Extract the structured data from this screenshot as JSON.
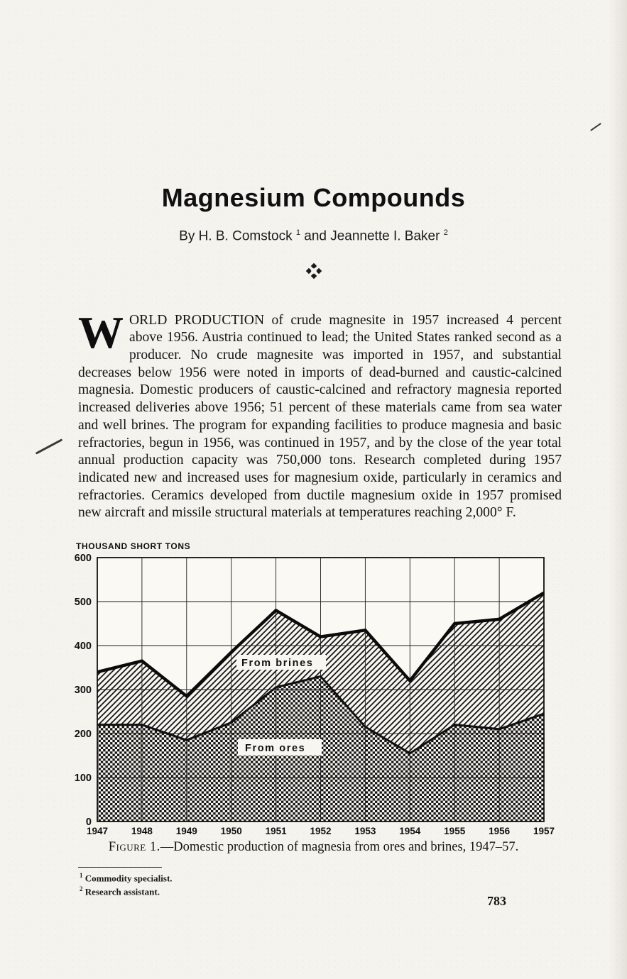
{
  "page": {
    "title": "Magnesium Compounds",
    "byline": {
      "pre": "By H. B. Comstock ",
      "sup1": "1",
      "mid": " and Jeannette I. Baker ",
      "sup2": "2"
    },
    "page_number": "783"
  },
  "icons": {
    "ornament": "four-diamond-fleuron"
  },
  "article": {
    "dropcap": "W",
    "paragraph": "ORLD PRODUCTION of crude magnesite in 1957 increased 4 percent above 1956.  Austria continued to lead; the United States ranked second as a producer.  No crude magnesite was imported in 1957, and substantial decreases below 1956 were noted in imports of dead-burned and caustic-calcined magnesia.  Domestic producers of caustic-calcined and refractory magnesia reported increased deliveries above 1956; 51 percent of these materials came from sea water and well brines.  The program for expanding facilities to produce magnesia and basic refractories, begun in 1956, was continued in 1957, and by the close of the year total annual production capacity was 750,000 tons.  Research completed during 1957 indicated new and increased uses for magnesium oxide, particularly in ceramics and refractories.  Ceramics developed from ductile magnesium oxide in 1957 promised new aircraft and missile structural materials at temperatures reaching 2,000° F."
  },
  "chart_data": {
    "type": "area",
    "stacked": true,
    "unit_label": "THOUSAND SHORT TONS",
    "categories": [
      "1947",
      "1948",
      "1949",
      "1950",
      "1951",
      "1952",
      "1953",
      "1954",
      "1955",
      "1956",
      "1957"
    ],
    "series": [
      {
        "name": "From ores",
        "pattern": "checker",
        "values": [
          220,
          220,
          185,
          225,
          305,
          330,
          215,
          155,
          220,
          210,
          245
        ]
      },
      {
        "name": "From brines",
        "pattern": "diagonal-hatch",
        "values": [
          120,
          145,
          100,
          160,
          175,
          90,
          220,
          165,
          230,
          250,
          275
        ]
      }
    ],
    "totals": [
      340,
      365,
      285,
      385,
      480,
      420,
      435,
      320,
      450,
      460,
      520
    ],
    "ylim": [
      0,
      600
    ],
    "yticks": [
      0,
      100,
      200,
      300,
      400,
      500,
      600
    ],
    "grid": true,
    "legend_position": "inside-area-labels",
    "xlabel": "",
    "ylabel": "THOUSAND SHORT TONS"
  },
  "figure": {
    "label": "Figure 1.",
    "caption": "—Domestic production of magnesia from ores and brines, 1947–57."
  },
  "footnotes": [
    {
      "sup": "1",
      "text": " Commodity specialist."
    },
    {
      "sup": "2",
      "text": " Research assistant."
    }
  ]
}
